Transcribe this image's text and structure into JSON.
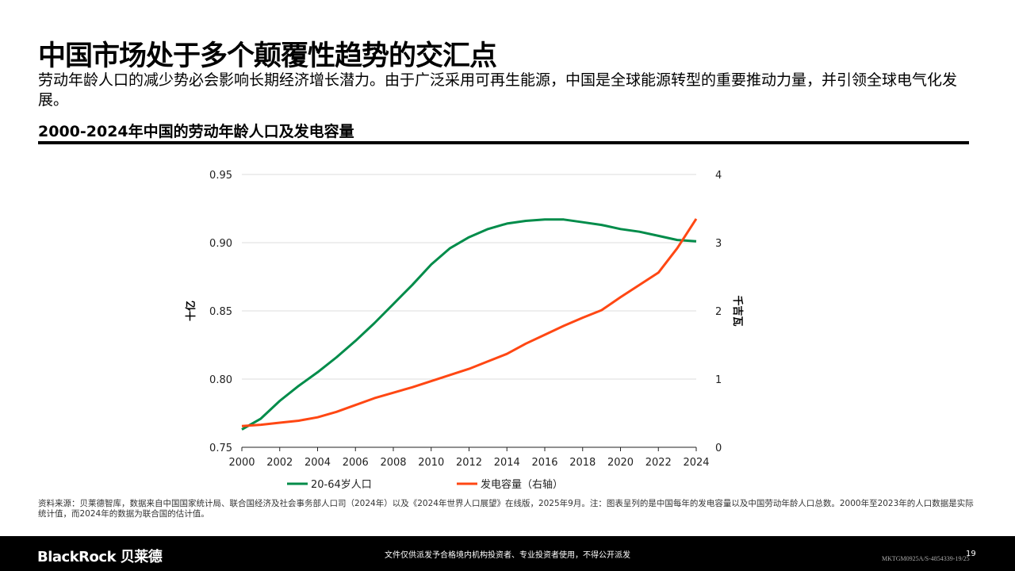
{
  "title": "中国市场处于多个颠覆性趋势的交汇点",
  "subtitle": "劳动年龄人口的减少势必会影响长期经济增长潜力。由于广泛采用可再生能源，中国是全球能源转型的重要推动力量，并引领全球电气化发展。",
  "chart_title": "2000-2024年中国的劳动年龄人口及发电容量",
  "source": "资料来源：贝莱德智库，数据来自中国国家统计局、联合国经济及社会事务部人口司（2024年）以及《2024年世界人口展望》在线版，2025年9月。注：图表呈列的是中国每年的发电容量以及中国劳动年龄人口总数。2000年至2023年的人口数据是实际统计值，而2024年的数据为联合国的估计值。",
  "footer": {
    "logo": "BlackRock 贝莱德",
    "disclaimer": "文件仅供派发予合格境内机构投资者、专业投资者使用，不得公开派发",
    "page": "19",
    "code": "MKTGM0925A/S-4854339-19/25"
  },
  "chart_data": {
    "type": "line",
    "x": [
      2000,
      2001,
      2002,
      2003,
      2004,
      2005,
      2006,
      2007,
      2008,
      2009,
      2010,
      2011,
      2012,
      2013,
      2014,
      2015,
      2016,
      2017,
      2018,
      2019,
      2020,
      2021,
      2022,
      2023,
      2024
    ],
    "xticks": [
      "2000",
      "2002",
      "2004",
      "2006",
      "2008",
      "2010",
      "2012",
      "2014",
      "2016",
      "2018",
      "2020",
      "2022",
      "2024"
    ],
    "xlim": [
      2000,
      2024
    ],
    "ylabel": "十亿",
    "ylim": [
      0.75,
      0.95
    ],
    "yticks": [
      "0.75",
      "0.80",
      "0.85",
      "0.90",
      "0.95"
    ],
    "y2label": "千吉瓦",
    "y2lim": [
      0,
      4
    ],
    "y2ticks": [
      "0",
      "1",
      "2",
      "3",
      "4"
    ],
    "grid": true,
    "legend": "bottom",
    "series": [
      {
        "name": "20-64岁人口",
        "axis": "left",
        "color": "#008c4a",
        "values": [
          0.763,
          0.771,
          0.784,
          0.795,
          0.805,
          0.816,
          0.828,
          0.841,
          0.855,
          0.869,
          0.884,
          0.896,
          0.904,
          0.91,
          0.914,
          0.916,
          0.917,
          0.917,
          0.915,
          0.913,
          0.91,
          0.908,
          0.905,
          0.902,
          0.901
        ]
      },
      {
        "name": "发电容量（右轴）",
        "axis": "right",
        "color": "#ff4713",
        "values": [
          0.31,
          0.33,
          0.36,
          0.39,
          0.44,
          0.52,
          0.62,
          0.72,
          0.8,
          0.88,
          0.97,
          1.06,
          1.15,
          1.26,
          1.37,
          1.52,
          1.65,
          1.78,
          1.9,
          2.01,
          2.2,
          2.38,
          2.56,
          2.92,
          3.35
        ]
      }
    ]
  }
}
